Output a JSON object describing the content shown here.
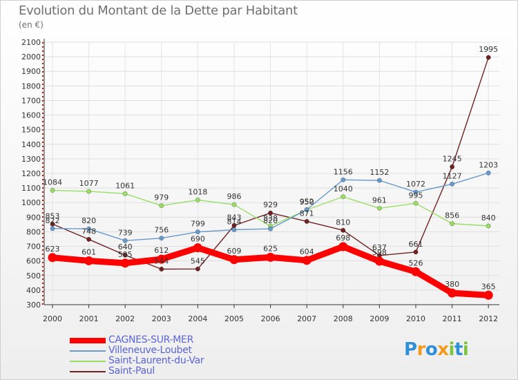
{
  "chart_data": {
    "type": "line",
    "title": "Evolution du Montant de la Dette par Habitant",
    "ylabel": "(en €)",
    "x": [
      "2000",
      "2001",
      "2002",
      "2003",
      "2004",
      "2005",
      "2006",
      "2007",
      "2008",
      "2009",
      "2010",
      "2011",
      "2012"
    ],
    "yticks": [
      "300",
      "400",
      "500",
      "600",
      "700",
      "800",
      "900",
      "1000",
      "1100",
      "1200",
      "1300",
      "1400",
      "1500",
      "1600",
      "1700",
      "1800",
      "1900",
      "2000",
      "2100"
    ],
    "ylim": [
      300,
      2100
    ],
    "grid": true,
    "series": [
      {
        "name": "CAGNES-SUR-MER",
        "color": "#ff0000",
        "values": [
          623,
          601,
          585,
          612,
          690,
          609,
          625,
          604,
          698,
          598,
          526,
          380,
          365
        ]
      },
      {
        "name": "Villeneuve-Loubet",
        "color": "#6699cc",
        "values": [
          822,
          820,
          739,
          756,
          799,
          814,
          820,
          952,
          1156,
          1152,
          1072,
          1127,
          1203
        ]
      },
      {
        "name": "Saint-Laurent-du-Var",
        "color": "#99dd66",
        "values": [
          1084,
          1077,
          1061,
          979,
          1018,
          986,
          838,
          950,
          1040,
          961,
          995,
          856,
          840
        ]
      },
      {
        "name": "Saint-Paul",
        "color": "#6e2222",
        "values": [
          853,
          748,
          640,
          544,
          545,
          843,
          929,
          871,
          810,
          637,
          661,
          1245,
          1995
        ]
      }
    ]
  },
  "logo": {
    "letters": [
      "P",
      "r",
      "o",
      "x",
      "i",
      "t",
      "i"
    ],
    "colors": [
      "#2f8fd8",
      "#f29a1e",
      "#2f8fd8",
      "#f29a1e",
      "#7cc243",
      "#2f8fd8",
      "#7cc243"
    ]
  }
}
